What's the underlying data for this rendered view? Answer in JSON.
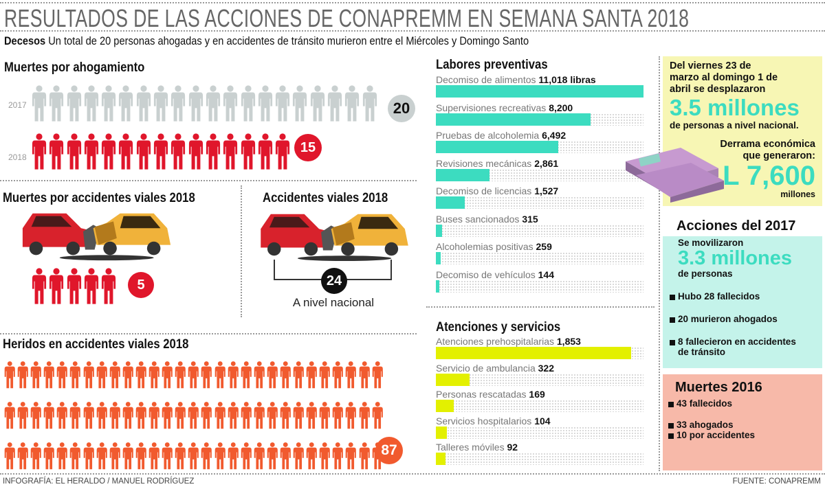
{
  "header": {
    "title": "RESULTADOS DE LAS ACCIONES DE CONAPREMM EN SEMANA SANTA 2018",
    "subtitle_lead": "Decesos",
    "subtitle": "Un total de 20 personas ahogadas y en accidentes de tránsito murieron entre el Miércoles y Domingo Santo"
  },
  "colors": {
    "teal": "#3cdcc0",
    "lime": "#e3f000",
    "red": "#e0162b",
    "gray_person": "#c9d0d0",
    "orange": "#f15a2e",
    "yellow_box": "#f7f6b4",
    "teal_box": "#c4f3ea",
    "pink_box": "#f7b9a9"
  },
  "drowning": {
    "title": "Muertes por ahogamiento",
    "rows": [
      {
        "year": "2017",
        "count": 20,
        "label": "20"
      },
      {
        "year": "2018",
        "count": 15,
        "label": "15"
      }
    ]
  },
  "road_deaths": {
    "title": "Muertes por accidentes viales 2018",
    "count": 5,
    "label": "5"
  },
  "road_accidents": {
    "title": "Accidentes viales 2018",
    "label": "24",
    "caption": "A nivel nacional"
  },
  "injured": {
    "title": "Heridos en accidentes viales 2018",
    "count": 87,
    "label": "87"
  },
  "chart_data": [
    {
      "type": "bar",
      "orientation": "horizontal",
      "title": "Labores preventivas",
      "categories": [
        "Decomiso de alimentos",
        "Supervisiones recreativas",
        "Pruebas de alcoholemia",
        "Revisiones mecánicas",
        "Decomiso de licencias",
        "Buses sancionados",
        "Alcoholemias positivas",
        "Decomiso de vehículos"
      ],
      "values": [
        11018,
        8200,
        6492,
        2861,
        1527,
        315,
        259,
        144
      ],
      "value_labels": [
        "11,018 libras",
        "8,200",
        "6,492",
        "2,861",
        "1,527",
        "315",
        "259",
        "144"
      ],
      "xlim": [
        0,
        11018
      ],
      "color": "#3cdcc0"
    },
    {
      "type": "bar",
      "orientation": "horizontal",
      "title": "Atenciones y servicios",
      "categories": [
        "Atenciones prehospitalarias",
        "Servicio de ambulancia",
        "Personas rescatadas",
        "Servicios hospitalarios",
        "Talleres móviles"
      ],
      "values": [
        1853,
        322,
        169,
        104,
        92
      ],
      "value_labels": [
        "1,853",
        "322",
        "169",
        "104",
        "92"
      ],
      "xlim": [
        0,
        1970
      ],
      "color": "#e3f000"
    }
  ],
  "travel": {
    "intro": "Del viernes  23 de marzo al domingo 1 de abril se desplazaron",
    "big": "3.5 millones",
    "outro": "de personas a nivel nacional.",
    "economy_label": "Derrama económica que generaron:",
    "economy_value": "L 7,600",
    "economy_unit": "millones"
  },
  "actions_2017": {
    "title": "Acciones del 2017",
    "intro": "Se movilizaron",
    "big": "3.3 millones",
    "outro": "de personas",
    "bullets": [
      "Hubo 28 fallecidos",
      "20 murieron ahogados",
      "8 fallecieron en accidentes de tránsito"
    ]
  },
  "deaths_2016": {
    "title": "Muertes 2016",
    "bullets": [
      "43 fallecidos",
      "33 ahogados",
      "10 por accidentes"
    ]
  },
  "footer": {
    "credit": "INFOGRAFÍA: EL HERALDO / MANUEL RODRÍGUEZ",
    "source": "FUENTE: CONAPREMM"
  }
}
